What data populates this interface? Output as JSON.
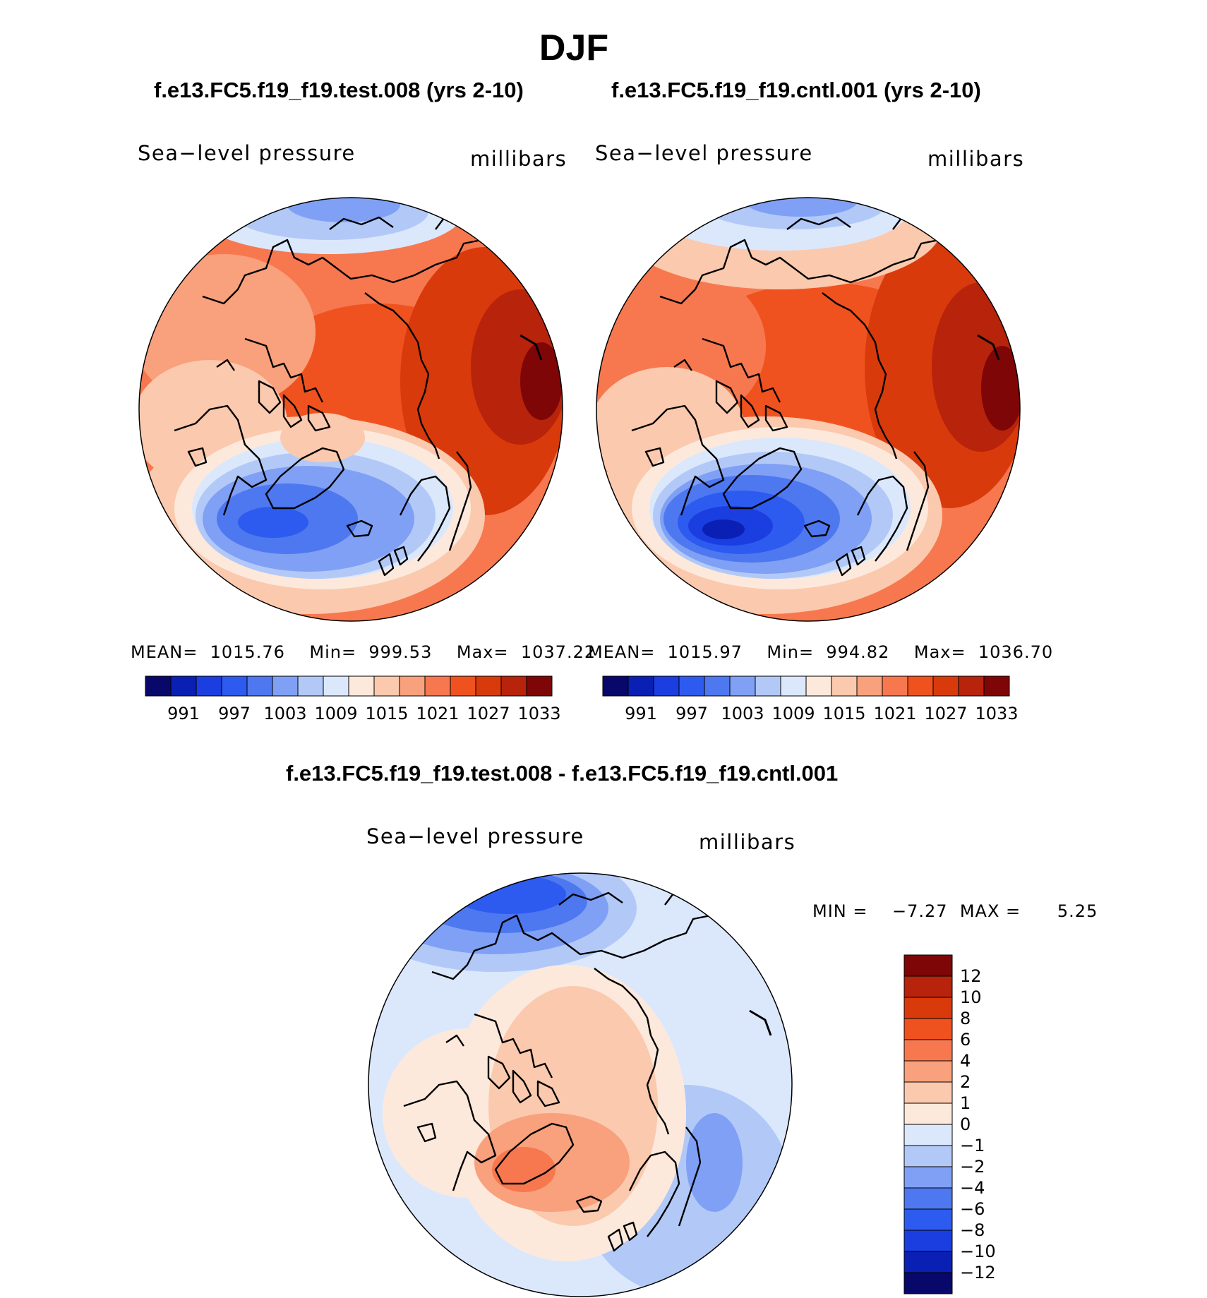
{
  "figure": {
    "title": "DJF",
    "difference_title": "f.e13.FC5.f19_f19.test.008 - f.e13.FC5.f19_f19.cntl.001"
  },
  "panels": [
    {
      "id": "test",
      "title": "f.e13.FC5.f19_f19.test.008 (yrs 2-10)",
      "variable": "Sea−level pressure",
      "units": "millibars",
      "mean_label": "MEAN=",
      "mean": "1015.76",
      "min_label": "Min=",
      "min": "999.53",
      "max_label": "Max=",
      "max": "1037.22"
    },
    {
      "id": "cntl",
      "title": "f.e13.FC5.f19_f19.cntl.001 (yrs 2-10)",
      "variable": "Sea−level pressure",
      "units": "millibars",
      "mean_label": "MEAN=",
      "mean": "1015.97",
      "min_label": "Min=",
      "min": "994.82",
      "max_label": "Max=",
      "max": "1036.70"
    }
  ],
  "difference": {
    "variable": "Sea−level pressure",
    "units": "millibars",
    "min_label": "MIN =",
    "min": "−7.27",
    "max_label": "MAX =",
    "max": "5.25"
  },
  "colorbar_abs": {
    "labels": [
      "991",
      "997",
      "1003",
      "1009",
      "1015",
      "1021",
      "1027",
      "1033"
    ],
    "colors": [
      "#08086b",
      "#0a20b4",
      "#1a3ee0",
      "#2e5bef",
      "#4e78ef",
      "#7fa0f4",
      "#b2c9f8",
      "#dbe8fc",
      "#fde9dc",
      "#fbc9ae",
      "#f9a07c",
      "#f7784f",
      "#f0521f",
      "#d93a0c",
      "#b8230b",
      "#7f0606"
    ]
  },
  "colorbar_diff": {
    "labels": [
      "12",
      "10",
      "8",
      "6",
      "4",
      "2",
      "1",
      "0",
      "−1",
      "−2",
      "−4",
      "−6",
      "−8",
      "−10",
      "−12"
    ],
    "colors": [
      "#7f0606",
      "#b8230b",
      "#d93a0c",
      "#f0521f",
      "#f7784f",
      "#f9a07c",
      "#fbc9ae",
      "#fde9dc",
      "#dbe8fc",
      "#b2c9f8",
      "#7fa0f4",
      "#4e78ef",
      "#2e5bef",
      "#1a3ee0",
      "#0a20b4",
      "#08086b"
    ]
  },
  "chart_data": [
    {
      "type": "map",
      "title": "f.e13.FC5.f19_f19.test.008 (yrs 2-10)",
      "projection": "north polar stereographic",
      "variable": "Sea-level pressure",
      "units": "millibars",
      "contour_levels": [
        991,
        994,
        997,
        1000,
        1003,
        1006,
        1009,
        1012,
        1015,
        1018,
        1021,
        1024,
        1027,
        1030,
        1033
      ],
      "mean": 1015.76,
      "min": 999.53,
      "max": 1037.22
    },
    {
      "type": "map",
      "title": "f.e13.FC5.f19_f19.cntl.001 (yrs 2-10)",
      "projection": "north polar stereographic",
      "variable": "Sea-level pressure",
      "units": "millibars",
      "contour_levels": [
        991,
        994,
        997,
        1000,
        1003,
        1006,
        1009,
        1012,
        1015,
        1018,
        1021,
        1024,
        1027,
        1030,
        1033
      ],
      "mean": 1015.97,
      "min": 994.82,
      "max": 1036.7
    },
    {
      "type": "map",
      "title": "f.e13.FC5.f19_f19.test.008 - f.e13.FC5.f19_f19.cntl.001",
      "projection": "north polar stereographic",
      "variable": "Sea-level pressure",
      "units": "millibars",
      "contour_levels": [
        -12,
        -10,
        -8,
        -6,
        -4,
        -2,
        -1,
        0,
        1,
        2,
        4,
        6,
        8,
        10,
        12
      ],
      "min": -7.27,
      "max": 5.25
    }
  ]
}
